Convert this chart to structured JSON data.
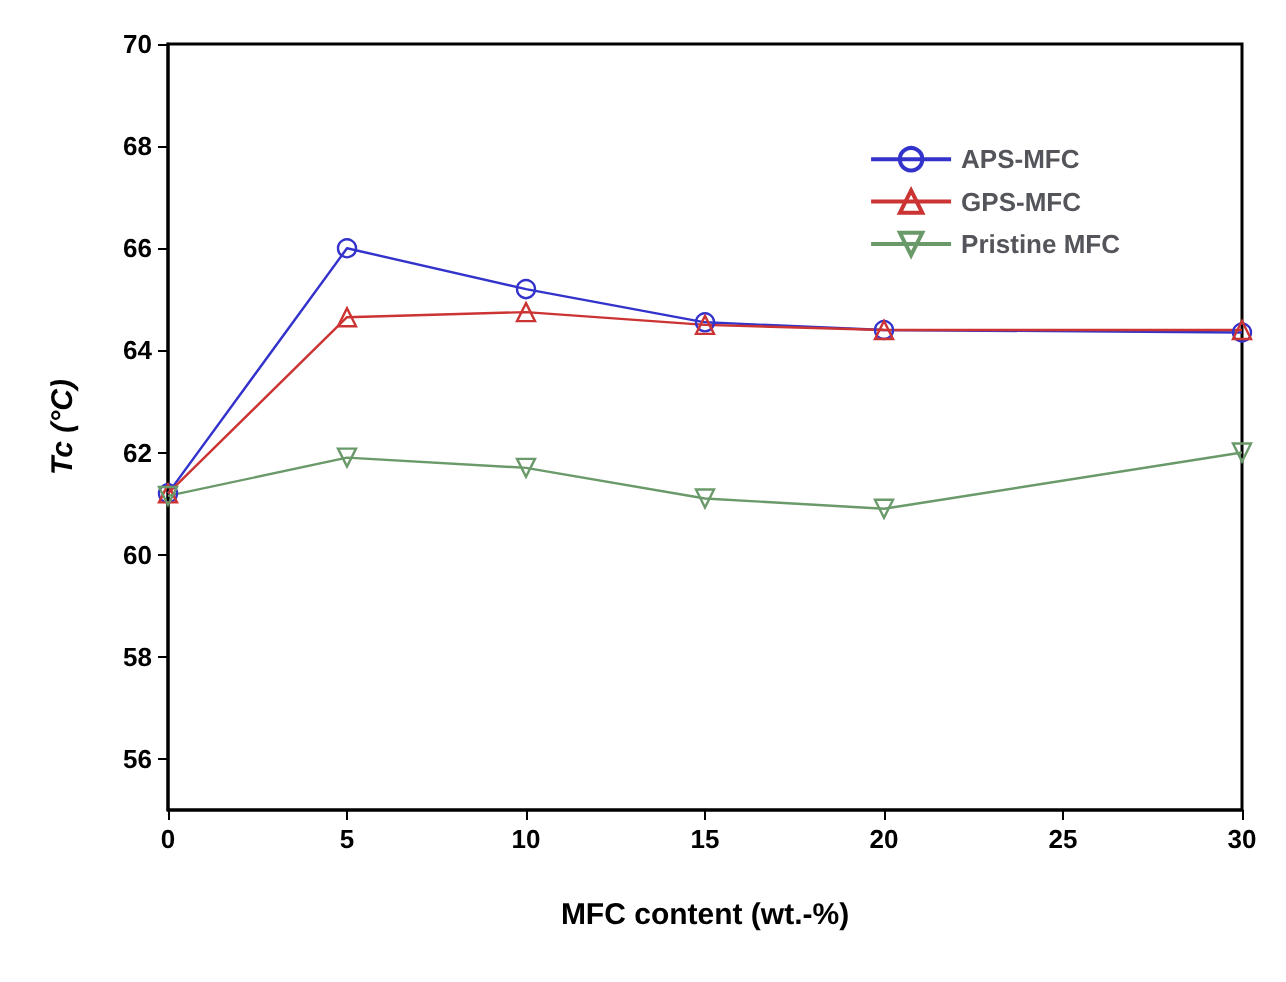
{
  "chart_data": {
    "type": "line",
    "xlabel": "MFC content (wt.-%)",
    "ylabel": "Tc (°C)",
    "x": [
      0,
      5,
      10,
      15,
      20,
      30
    ],
    "series": [
      {
        "name": "APS-MFC",
        "color": "#3333cc",
        "marker": "circle",
        "values": [
          61.2,
          66.0,
          65.2,
          64.55,
          64.4,
          64.35
        ]
      },
      {
        "name": "GPS-MFC",
        "color": "#cc3333",
        "marker": "triangle",
        "values": [
          61.2,
          64.65,
          64.75,
          64.5,
          64.4,
          64.4
        ]
      },
      {
        "name": "Pristine MFC",
        "color": "#6a9a6a",
        "marker": "triangle-down",
        "values": [
          61.15,
          61.9,
          61.7,
          61.1,
          60.9,
          62.0
        ]
      }
    ],
    "xlim": [
      0,
      30
    ],
    "xticks": [
      0,
      5,
      10,
      15,
      20,
      25,
      30
    ],
    "ylim": [
      55,
      70
    ],
    "yticks": [
      56,
      58,
      60,
      62,
      64,
      66,
      68,
      70
    ],
    "grid": false,
    "legend": "top right"
  }
}
